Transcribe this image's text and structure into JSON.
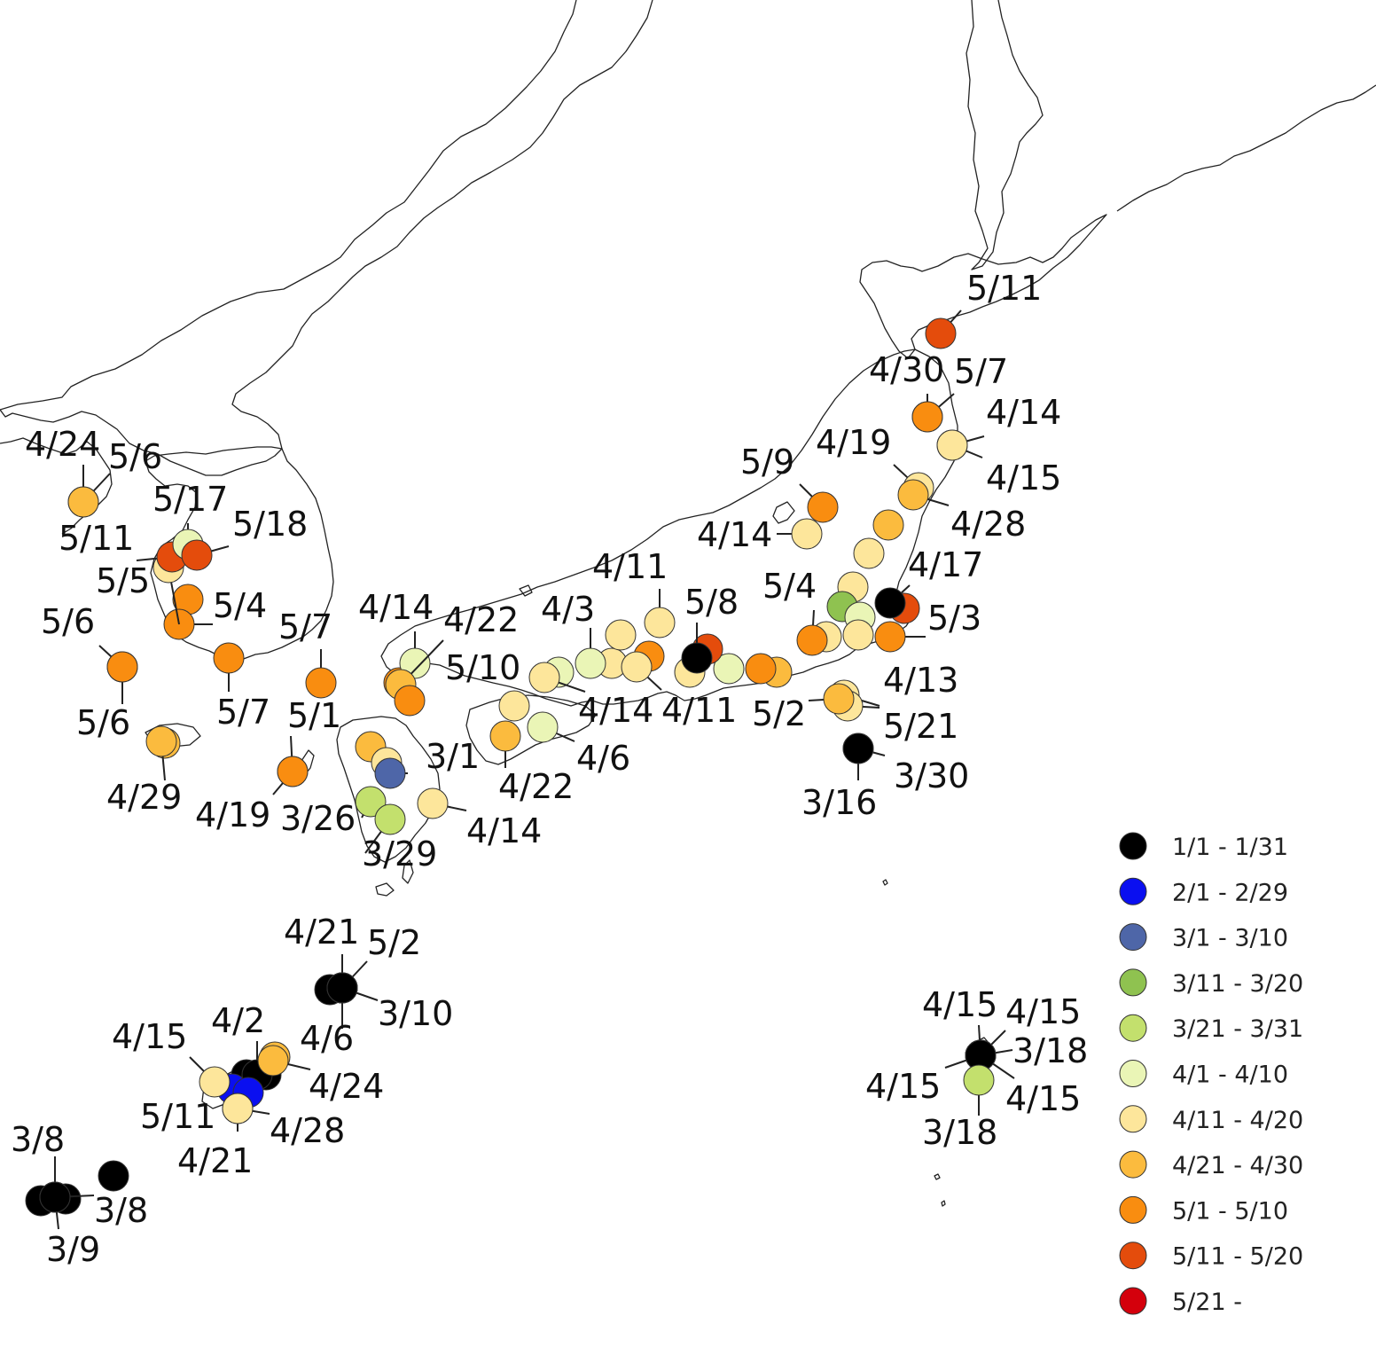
{
  "legend": {
    "items": [
      {
        "label": "1/1 - 1/31",
        "color": "#000000"
      },
      {
        "label": "2/1 - 2/29",
        "color": "#0a0ff0"
      },
      {
        "label": "3/1 - 3/10",
        "color": "#4e66a8"
      },
      {
        "label": "3/11 - 3/20",
        "color": "#8fc250"
      },
      {
        "label": "3/21 - 3/31",
        "color": "#c3e06d"
      },
      {
        "label": "4/1 - 4/10",
        "color": "#eaf5b6"
      },
      {
        "label": "4/11 - 4/20",
        "color": "#fde69b"
      },
      {
        "label": "4/21 - 4/30",
        "color": "#fbbb3e"
      },
      {
        "label": "5/1 - 5/10",
        "color": "#f98d10"
      },
      {
        "label": "5/11 - 5/20",
        "color": "#e44c0c"
      },
      {
        "label": "5/21 -",
        "color": "#d4000c"
      }
    ]
  },
  "markers": [
    {
      "date": "5/11",
      "category": "5/11 - 5/20"
    },
    {
      "date": "4/30",
      "category": "4/21 - 4/30"
    },
    {
      "date": "5/7",
      "category": "5/1 - 5/10"
    },
    {
      "date": "4/14",
      "category": "4/11 - 4/20"
    },
    {
      "date": "4/15",
      "category": "4/11 - 4/20"
    },
    {
      "date": "4/19",
      "category": "4/11 - 4/20"
    },
    {
      "date": "4/28",
      "category": "4/21 - 4/30"
    },
    {
      "date": "5/9",
      "category": "5/1 - 5/10"
    },
    {
      "date": "4/14",
      "category": "4/11 - 4/20"
    },
    {
      "date": "4/17",
      "category": "1/1 - 1/31"
    },
    {
      "date": "5/3",
      "category": "5/1 - 5/10"
    },
    {
      "date": "5/4",
      "category": "5/1 - 5/10"
    },
    {
      "date": "4/13",
      "category": "4/11 - 4/20"
    },
    {
      "date": "5/21",
      "category": "4/11 - 4/20"
    },
    {
      "date": "5/2",
      "category": "4/21 - 4/30"
    },
    {
      "date": "3/30",
      "category": "1/1 - 1/31"
    },
    {
      "date": "3/16",
      "category": "1/1 - 1/31"
    },
    {
      "date": "5/8",
      "category": "1/1 - 1/31"
    },
    {
      "date": "4/11",
      "category": "4/11 - 4/20"
    },
    {
      "date": "4/11",
      "category": "4/11 - 4/20"
    },
    {
      "date": "4/3",
      "category": "4/1 - 4/10"
    },
    {
      "date": "4/14",
      "category": "4/11 - 4/20"
    },
    {
      "date": "4/6",
      "category": "4/1 - 4/10"
    },
    {
      "date": "4/22",
      "category": "4/21 - 4/30"
    },
    {
      "date": "4/14",
      "category": "4/1 - 4/10"
    },
    {
      "date": "4/22",
      "category": "4/21 - 4/30"
    },
    {
      "date": "5/10",
      "category": "5/1 - 5/10"
    },
    {
      "date": "3/1",
      "category": "3/1 - 3/10"
    },
    {
      "date": "4/14",
      "category": "4/11 - 4/20"
    },
    {
      "date": "3/26",
      "category": "3/21 - 3/31"
    },
    {
      "date": "3/29",
      "category": "3/21 - 3/31"
    },
    {
      "date": "5/1",
      "category": "5/1 - 5/10"
    },
    {
      "date": "4/19",
      "category": "5/1 - 5/10"
    },
    {
      "date": "5/7",
      "category": "5/1 - 5/10"
    },
    {
      "date": "5/7",
      "category": "5/1 - 5/10"
    },
    {
      "date": "4/29",
      "category": "4/21 - 4/30"
    },
    {
      "date": "5/6",
      "category": "5/1 - 5/10"
    },
    {
      "date": "5/6",
      "category": "5/1 - 5/10"
    },
    {
      "date": "5/4",
      "category": "5/1 - 5/10"
    },
    {
      "date": "5/5",
      "category": "4/11 - 4/20"
    },
    {
      "date": "5/11",
      "category": "5/11 - 5/20"
    },
    {
      "date": "5/17",
      "category": "4/1 - 4/10"
    },
    {
      "date": "5/18",
      "category": "5/11 - 5/20"
    },
    {
      "date": "4/24",
      "category": "4/21 - 4/30"
    },
    {
      "date": "5/6",
      "category": "4/21 - 4/30"
    },
    {
      "date": "4/21",
      "category": "1/1 - 1/31"
    },
    {
      "date": "5/2",
      "category": "1/1 - 1/31"
    },
    {
      "date": "3/10",
      "category": "1/1 - 1/31"
    },
    {
      "date": "4/6",
      "category": "1/1 - 1/31"
    },
    {
      "date": "4/15",
      "category": "4/11 - 4/20"
    },
    {
      "date": "4/2",
      "category": "1/1 - 1/31"
    },
    {
      "date": "4/24",
      "category": "4/21 - 4/30"
    },
    {
      "date": "5/11",
      "category": "2/1 - 2/29"
    },
    {
      "date": "4/28",
      "category": "1/1 - 1/31"
    },
    {
      "date": "4/21",
      "category": "4/11 - 4/20"
    },
    {
      "date": "3/8",
      "category": "1/1 - 1/31"
    },
    {
      "date": "3/8",
      "category": "1/1 - 1/31"
    },
    {
      "date": "3/9",
      "category": "1/1 - 1/31"
    },
    {
      "date": "4/15",
      "category": "1/1 - 1/31"
    },
    {
      "date": "4/15",
      "category": "1/1 - 1/31"
    },
    {
      "date": "3/18",
      "category": "1/1 - 1/31"
    },
    {
      "date": "4/15",
      "category": "1/1 - 1/31"
    },
    {
      "date": "4/15",
      "category": "1/1 - 1/31"
    },
    {
      "date": "3/18",
      "category": "3/21 - 3/31"
    }
  ]
}
